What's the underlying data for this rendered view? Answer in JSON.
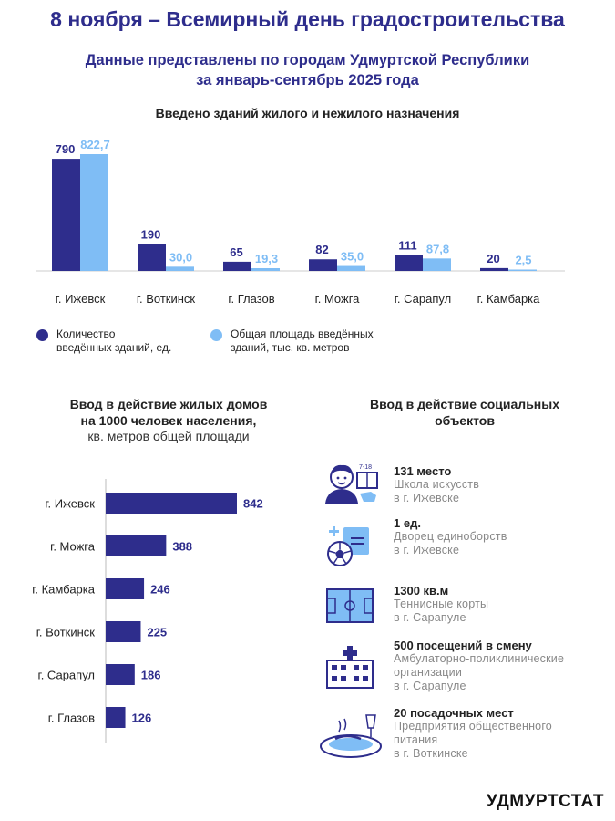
{
  "header": {
    "title": "8 ноября – Всемирный день градостроительства",
    "subtitle_line1": "Данные представлены по городам Удмуртской Республики",
    "subtitle_line2": "за январь-сентябрь 2025 года"
  },
  "chart_data": [
    {
      "type": "bar",
      "title": "Введено зданий жилого и нежилого назначения",
      "categories": [
        "г. Ижевск",
        "г. Воткинск",
        "г. Глазов",
        "г. Можга",
        "г. Сарапул",
        "г. Камбарка"
      ],
      "series": [
        {
          "name": "Количество введённых зданий, ед.",
          "values": [
            790,
            190,
            65,
            82,
            111,
            20
          ],
          "labels": [
            "790",
            "190",
            "65",
            "82",
            "111",
            "20"
          ],
          "color": "#2e2d8c"
        },
        {
          "name": "Общая площадь введённых зданий, тыс. кв. метров",
          "values": [
            822.7,
            30.0,
            19.3,
            35.0,
            87.8,
            2.5
          ],
          "labels": [
            "822,7",
            "30,0",
            "19,3",
            "35,0",
            "87,8",
            "2,5"
          ],
          "color": "#7fbdf5"
        }
      ],
      "legend_line1": [
        "Количество",
        "Общая площадь введённых"
      ],
      "legend_line2": [
        "введённых зданий, ед.",
        "зданий, тыс. кв. метров"
      ],
      "legend_position": "bottom"
    },
    {
      "type": "bar",
      "orientation": "horizontal",
      "title_line1": "Ввод в действие жилых домов",
      "title_line2": "на 1000 человек населения,",
      "subtitle": "кв. метров общей площади",
      "categories": [
        "г. Ижевск",
        "г. Можга",
        "г. Камбарка",
        "г. Воткинск",
        "г. Сарапул",
        "г. Глазов"
      ],
      "values": [
        842,
        388,
        246,
        225,
        186,
        126
      ],
      "color": "#2e2d8c"
    }
  ],
  "social": {
    "title_line1": "Ввод в действие социальных",
    "title_line2": "объектов",
    "items": [
      {
        "icon": "school-student-icon",
        "badge": "7-18",
        "title": "131 место",
        "desc": [
          "Школа искусств",
          "в г. Ижевске"
        ]
      },
      {
        "icon": "sports-ball-icon",
        "title": "1 ед.",
        "desc": [
          "Дворец единоборств",
          "в г. Ижевске"
        ]
      },
      {
        "icon": "tennis-court-icon",
        "title": "1300 кв.м",
        "desc": [
          "Теннисные корты",
          "в г. Сарапуле"
        ]
      },
      {
        "icon": "clinic-building-icon",
        "title": "500 посещений в смену",
        "desc": [
          "Амбулаторно-поликлинические",
          "организации",
          "в г. Сарапуле"
        ]
      },
      {
        "icon": "food-plate-icon",
        "title": "20 посадочных мест",
        "desc": [
          "Предприятия общественного",
          "питания",
          "в г. Воткинске"
        ]
      }
    ]
  },
  "colors": {
    "dark": "#2e2d8c",
    "light": "#7fbdf5"
  },
  "footer": {
    "brand": "УДМУРТСТАТ"
  }
}
